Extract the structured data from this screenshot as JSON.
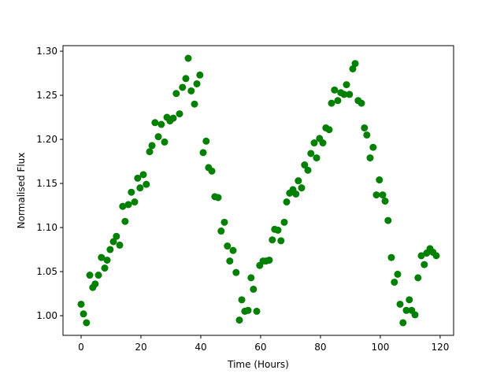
{
  "chart_data": {
    "type": "scatter",
    "x_label": "Time (Hours)",
    "y_label": "Normalised Flux",
    "color": "#008000",
    "xlim": [
      -6.05,
      124.5
    ],
    "ylim": [
      0.9777,
      1.3063
    ],
    "xticks": [
      0,
      20,
      40,
      60,
      80,
      100,
      120
    ],
    "yticks": [
      {
        "value": 1.0,
        "label": "1.00"
      },
      1.05,
      {
        "value": 1.1,
        "label": "1.10"
      },
      1.15,
      {
        "value": 1.2,
        "label": "1.20"
      },
      1.25,
      {
        "value": 1.3,
        "label": "1.30"
      }
    ],
    "x": [
      0,
      0.8,
      1.8,
      2.9,
      3.9,
      4.7,
      5.8,
      6.8,
      7.9,
      8.7,
      9.7,
      10.8,
      11.8,
      12.9,
      13.9,
      14.7,
      15.8,
      16.8,
      17.9,
      18.9,
      19.7,
      20.8,
      21.8,
      22.9,
      23.7,
      24.7,
      25.8,
      26.8,
      27.9,
      28.7,
      29.7,
      30.8,
      31.8,
      32.9,
      33.9,
      35.0,
      35.8,
      36.8,
      37.9,
      38.7,
      39.7,
      40.8,
      41.8,
      42.6,
      43.7,
      44.7,
      45.8,
      46.8,
      47.9,
      48.9,
      49.7,
      50.8,
      51.8,
      52.9,
      53.7,
      54.7,
      55.8,
      56.8,
      57.6,
      58.7,
      59.7,
      60.8,
      61.8,
      62.9,
      63.9,
      64.7,
      65.8,
      66.8,
      67.9,
      68.7,
      69.7,
      70.8,
      71.8,
      72.6,
      73.7,
      74.7,
      75.8,
      76.8,
      77.9,
      78.7,
      79.7,
      80.8,
      81.8,
      82.9,
      83.7,
      84.7,
      85.8,
      86.8,
      87.9,
      88.7,
      89.7,
      90.8,
      91.6,
      92.6,
      93.7,
      94.7,
      95.5,
      96.6,
      97.6,
      98.7,
      99.7,
      100.8,
      101.6,
      102.6,
      103.7,
      104.7,
      105.8,
      106.6,
      107.6,
      108.7,
      109.7,
      110.5,
      111.6,
      112.6,
      113.7,
      114.7,
      115.5,
      116.6,
      117.6,
      118.7
    ],
    "values": [
      1.013,
      1.002,
      0.992,
      1.046,
      1.032,
      1.036,
      1.046,
      1.066,
      1.054,
      1.063,
      1.075,
      1.084,
      1.09,
      1.08,
      1.124,
      1.107,
      1.126,
      1.14,
      1.129,
      1.156,
      1.145,
      1.16,
      1.149,
      1.186,
      1.193,
      1.219,
      1.203,
      1.217,
      1.197,
      1.225,
      1.221,
      1.224,
      1.252,
      1.229,
      1.259,
      1.269,
      1.292,
      1.255,
      1.24,
      1.263,
      1.273,
      1.185,
      1.198,
      1.168,
      1.164,
      1.135,
      1.134,
      1.096,
      1.106,
      1.079,
      1.062,
      1.074,
      1.049,
      0.995,
      1.018,
      1.005,
      1.006,
      1.043,
      1.03,
      1.005,
      1.057,
      1.062,
      1.062,
      1.063,
      1.086,
      1.098,
      1.097,
      1.085,
      1.106,
      1.129,
      1.139,
      1.143,
      1.138,
      1.153,
      1.145,
      1.171,
      1.165,
      1.184,
      1.196,
      1.179,
      1.201,
      1.196,
      1.213,
      1.211,
      1.241,
      1.256,
      1.244,
      1.253,
      1.251,
      1.262,
      1.251,
      1.28,
      1.286,
      1.244,
      1.241,
      1.213,
      1.205,
      1.179,
      1.191,
      1.137,
      1.154,
      1.137,
      1.13,
      1.108,
      1.066,
      1.038,
      1.047,
      1.013,
      0.992,
      1.006,
      1.018,
      1.006,
      1.001,
      1.043,
      1.068,
      1.058,
      1.071,
      1.076,
      1.072,
      1.068
    ]
  }
}
